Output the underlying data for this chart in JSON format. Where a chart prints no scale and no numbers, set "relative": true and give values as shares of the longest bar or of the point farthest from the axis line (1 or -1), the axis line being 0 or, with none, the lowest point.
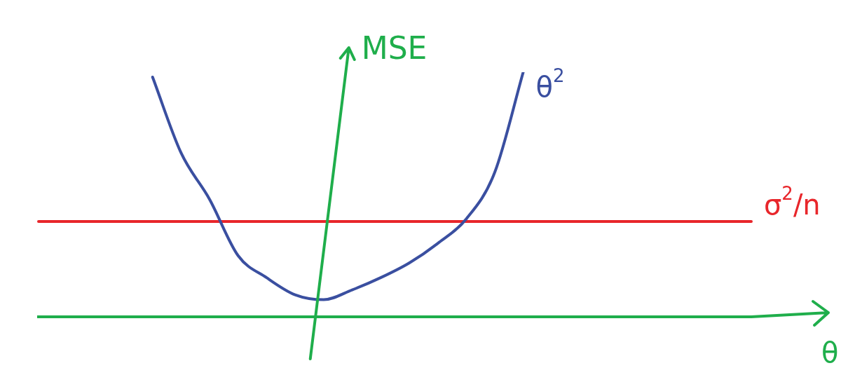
{
  "chart_data": {
    "type": "line",
    "relative": true,
    "xlabel": "θ",
    "ylabel": "MSE",
    "legend": false,
    "grid": false,
    "marker": "none",
    "line_style": "solid",
    "categories": [
      null,
      null,
      null,
      null,
      null,
      null,
      null,
      null,
      null,
      null,
      null,
      null,
      null,
      null,
      null,
      null,
      null,
      null,
      null,
      null,
      null,
      null,
      null,
      null,
      null,
      null
    ],
    "series": [
      {
        "name": "θ$^{2}$",
        "color": "#3a4fa0",
        "values": [
          null,
          null,
          null,
          null,
          0.98,
          0.67,
          0.48,
          0.25,
          0.16,
          0.09,
          0.07,
          0.11,
          0.16,
          0.22,
          0.3,
          0.4,
          0.59,
          1,
          null,
          null,
          null,
          null,
          null,
          null,
          null,
          null
        ]
      },
      {
        "name": "σ$^{2}$/n",
        "color": "#e8262b",
        "values": [
          0.39,
          0.39,
          0.39,
          0.39,
          0.39,
          0.39,
          0.39,
          0.39,
          0.39,
          0.39,
          0.39,
          0.39,
          0.39,
          0.39,
          0.39,
          0.39,
          0.39,
          0.39,
          0.39,
          0.39,
          0.39,
          0.39,
          0.39,
          0.39,
          0.39,
          0.39
        ]
      }
    ]
  }
}
